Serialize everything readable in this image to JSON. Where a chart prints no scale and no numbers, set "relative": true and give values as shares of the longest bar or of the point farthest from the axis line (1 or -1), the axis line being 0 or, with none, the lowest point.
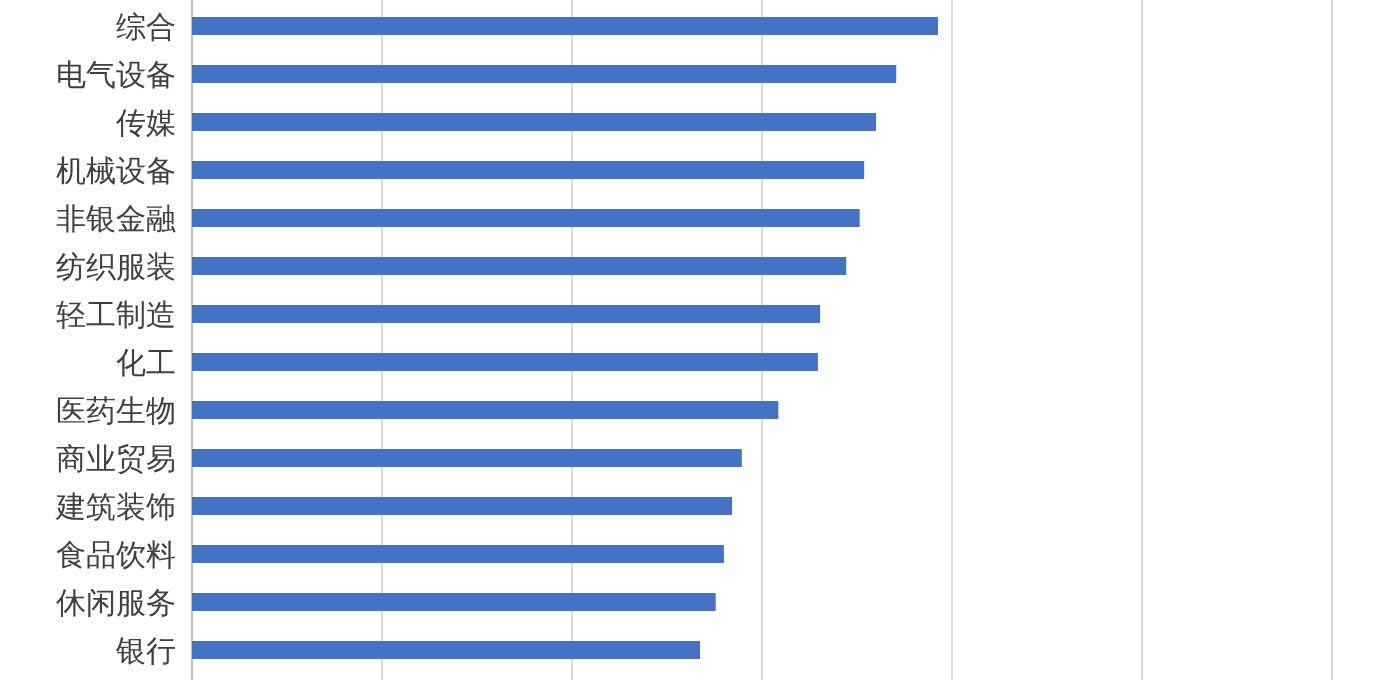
{
  "chart_data": {
    "type": "bar",
    "orientation": "horizontal",
    "relative": true,
    "grid": "x",
    "color": "#4472c4",
    "categories": [
      "综合",
      "电气设备",
      "传媒",
      "机械设备",
      "非银金融",
      "纺织服装",
      "轻工制造",
      "化工",
      "医药生物",
      "商业贸易",
      "建筑装饰",
      "食品饮料",
      "休闲服务",
      "银行"
    ],
    "values": [
      1,
      0.944,
      0.917,
      0.901,
      0.895,
      0.877,
      0.842,
      0.839,
      0.786,
      0.737,
      0.724,
      0.713,
      0.702,
      0.681
    ]
  }
}
